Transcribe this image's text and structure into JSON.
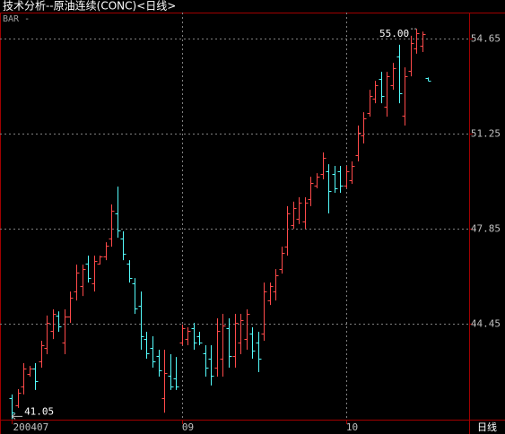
{
  "chart_data": {
    "type": "ohlc",
    "title": "技术分析--原油连续(CONC)<日线>",
    "subtitle": "BAR -",
    "period_label": "日线",
    "high_label": "55.00",
    "low_label": "41.05",
    "up_color": "#ff4a4a",
    "down_color": "#54fcfc",
    "grid": true,
    "ylim": [
      41.03,
      55.58
    ],
    "yticks": [
      54.65,
      51.25,
      47.85,
      44.45
    ],
    "xlim": [
      -2,
      78
    ],
    "xticks": [
      {
        "value": 0,
        "label": "200407"
      },
      {
        "value": 29,
        "label": "09"
      },
      {
        "value": 57,
        "label": "10"
      }
    ],
    "series": [
      {
        "name": "open",
        "values": [
          41.8,
          41.55,
          42.2,
          42.65,
          42.85,
          43.1,
          43.6,
          44.2,
          44.75,
          43.8,
          44.7,
          45.6,
          45.8,
          46.6,
          45.9,
          46.6,
          46.85,
          47.5,
          48.4,
          47.5,
          46.6,
          45.9,
          45.1,
          43.9,
          43.6,
          43.3,
          41.8,
          42.6,
          42.5,
          43.8,
          43.9,
          44.3,
          44.0,
          43.4,
          43.2,
          42.9,
          43.2,
          44.3,
          43.3,
          43.8,
          43.9,
          44.1,
          43.8,
          44.1,
          45.3,
          45.6,
          46.4,
          47.2,
          48.0,
          48.2,
          48.1,
          48.9,
          49.4,
          49.8,
          49.9,
          49.8,
          49.9,
          49.4,
          49.6,
          50.5,
          51.2,
          52.0,
          52.5,
          53.2,
          52.2,
          53.0,
          54.0,
          51.9,
          53.5,
          54.3,
          54.4,
          53.25
        ]
      },
      {
        "name": "high",
        "values": [
          41.93,
          42.12,
          43.05,
          42.95,
          43.05,
          43.85,
          44.75,
          44.97,
          44.9,
          44.97,
          45.61,
          46.57,
          46.57,
          46.89,
          46.89,
          46.89,
          47.37,
          48.72,
          49.36,
          47.76,
          46.73,
          46.09,
          45.61,
          44.17,
          44.01,
          43.53,
          43.53,
          43.37,
          43.27,
          44.43,
          44.33,
          44.49,
          44.17,
          43.69,
          43.69,
          44.65,
          44.81,
          44.65,
          44.81,
          44.81,
          44.97,
          44.33,
          44.17,
          45.93,
          45.93,
          46.41,
          47.21,
          48.66,
          48.82,
          48.98,
          48.98,
          49.71,
          49.84,
          50.58,
          50.16,
          50.1,
          50.1,
          50.1,
          50.26,
          51.54,
          52.02,
          52.82,
          53.14,
          53.46,
          53.46,
          53.78,
          54.43,
          53.62,
          54.75,
          55.0,
          54.9,
          53.26
        ]
      },
      {
        "name": "low",
        "values": [
          41.05,
          41.45,
          41.93,
          42.57,
          42.09,
          42.89,
          43.37,
          43.91,
          44.17,
          43.37,
          44.49,
          45.29,
          45.45,
          45.93,
          45.61,
          46.57,
          46.73,
          47.21,
          47.53,
          46.73,
          45.93,
          44.81,
          43.53,
          43.21,
          42.89,
          42.57,
          41.28,
          42.09,
          42.09,
          43.69,
          43.69,
          43.53,
          43.69,
          42.57,
          42.25,
          42.57,
          42.57,
          42.89,
          42.89,
          43.37,
          43.53,
          43.21,
          42.73,
          43.85,
          45.13,
          45.29,
          46.25,
          46.89,
          47.85,
          48.02,
          47.85,
          48.66,
          49.3,
          49.62,
          48.4,
          49.14,
          49.14,
          49.3,
          49.46,
          50.26,
          50.9,
          51.86,
          52.34,
          52.34,
          51.86,
          52.82,
          52.34,
          51.54,
          53.3,
          54.11,
          54.17,
          53.14
        ]
      },
      {
        "name": "close",
        "values": [
          41.3,
          42.0,
          42.85,
          42.85,
          42.4,
          43.7,
          44.5,
          44.8,
          44.35,
          44.7,
          45.4,
          46.3,
          46.4,
          46.1,
          46.7,
          46.85,
          47.25,
          48.5,
          47.8,
          46.95,
          46.1,
          45.0,
          44.0,
          43.4,
          43.1,
          42.8,
          42.7,
          42.2,
          42.2,
          44.3,
          44.2,
          43.8,
          43.8,
          42.9,
          42.6,
          44.2,
          44.4,
          43.3,
          44.5,
          44.6,
          44.8,
          43.5,
          43.2,
          45.6,
          45.8,
          46.2,
          47.0,
          48.4,
          48.6,
          48.8,
          48.8,
          49.5,
          49.7,
          50.4,
          49.2,
          49.3,
          49.4,
          49.9,
          50.1,
          51.3,
          51.8,
          52.6,
          53.0,
          52.6,
          53.3,
          53.6,
          52.7,
          53.3,
          54.5,
          54.85,
          54.8,
          53.15
        ]
      }
    ]
  }
}
